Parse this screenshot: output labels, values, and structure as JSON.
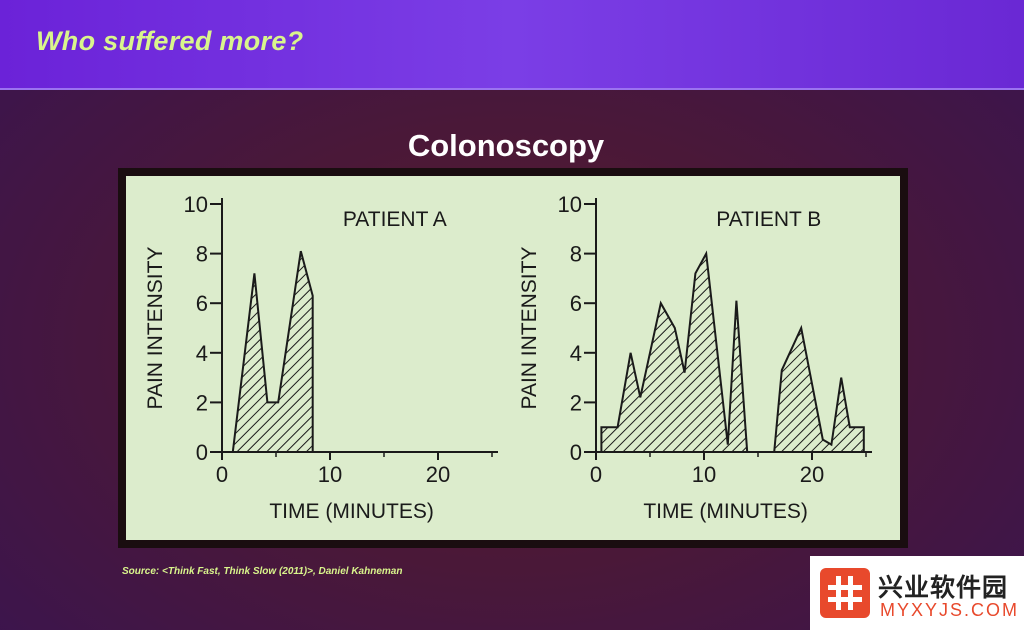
{
  "slide": {
    "title": "Who suffered more?",
    "chart_title": "Colonoscopy",
    "source": "Source: <Think Fast, Think Slow (2011)>,   Daniel Kahneman",
    "watermark": {
      "name": "兴业软件园",
      "url": "MYXYJS.COM",
      "brand_color": "#e8492c"
    }
  },
  "colors": {
    "title_band": "#6b22d8",
    "title_text": "#d9f58c",
    "chart_background": "#dceccc",
    "ink": "#1a1a1a"
  },
  "chart_data": [
    {
      "type": "area",
      "fill": "hatched",
      "label": "PATIENT A",
      "xlabel": "TIME (MINUTES)",
      "ylabel": "PAIN INTENSITY",
      "xlim": [
        0,
        25
      ],
      "ylim": [
        0,
        10
      ],
      "xticks": [
        0,
        10,
        20
      ],
      "yticks": [
        0,
        2,
        4,
        6,
        8,
        10
      ],
      "points": [
        {
          "x": 1,
          "y": 0
        },
        {
          "x": 3,
          "y": 7.2
        },
        {
          "x": 4.2,
          "y": 2
        },
        {
          "x": 5.2,
          "y": 2
        },
        {
          "x": 7.3,
          "y": 8.1
        },
        {
          "x": 8.4,
          "y": 6.3
        },
        {
          "x": 8.4,
          "y": 0
        }
      ]
    },
    {
      "type": "area",
      "fill": "hatched",
      "label": "PATIENT B",
      "xlabel": "TIME (MINUTES)",
      "ylabel": "PAIN INTENSITY",
      "xlim": [
        0,
        25
      ],
      "ylim": [
        0,
        10
      ],
      "xticks": [
        0,
        10,
        20
      ],
      "yticks": [
        0,
        2,
        4,
        6,
        8,
        10
      ],
      "points": [
        {
          "x": 0.5,
          "y": 0
        },
        {
          "x": 0.5,
          "y": 1
        },
        {
          "x": 2,
          "y": 1
        },
        {
          "x": 3.2,
          "y": 4
        },
        {
          "x": 4.1,
          "y": 2.2
        },
        {
          "x": 6,
          "y": 6
        },
        {
          "x": 7.3,
          "y": 5
        },
        {
          "x": 8.2,
          "y": 3.2
        },
        {
          "x": 9.2,
          "y": 7.2
        },
        {
          "x": 10.2,
          "y": 8
        },
        {
          "x": 12.2,
          "y": 0.3
        },
        {
          "x": 13,
          "y": 6.1
        },
        {
          "x": 14,
          "y": 0
        },
        {
          "x": 16.5,
          "y": 0
        },
        {
          "x": 17.2,
          "y": 3.3
        },
        {
          "x": 19,
          "y": 5
        },
        {
          "x": 21,
          "y": 0.5
        },
        {
          "x": 21.8,
          "y": 0.3
        },
        {
          "x": 22.7,
          "y": 3
        },
        {
          "x": 23.5,
          "y": 1
        },
        {
          "x": 24.8,
          "y": 1
        },
        {
          "x": 24.8,
          "y": 0
        }
      ]
    }
  ]
}
